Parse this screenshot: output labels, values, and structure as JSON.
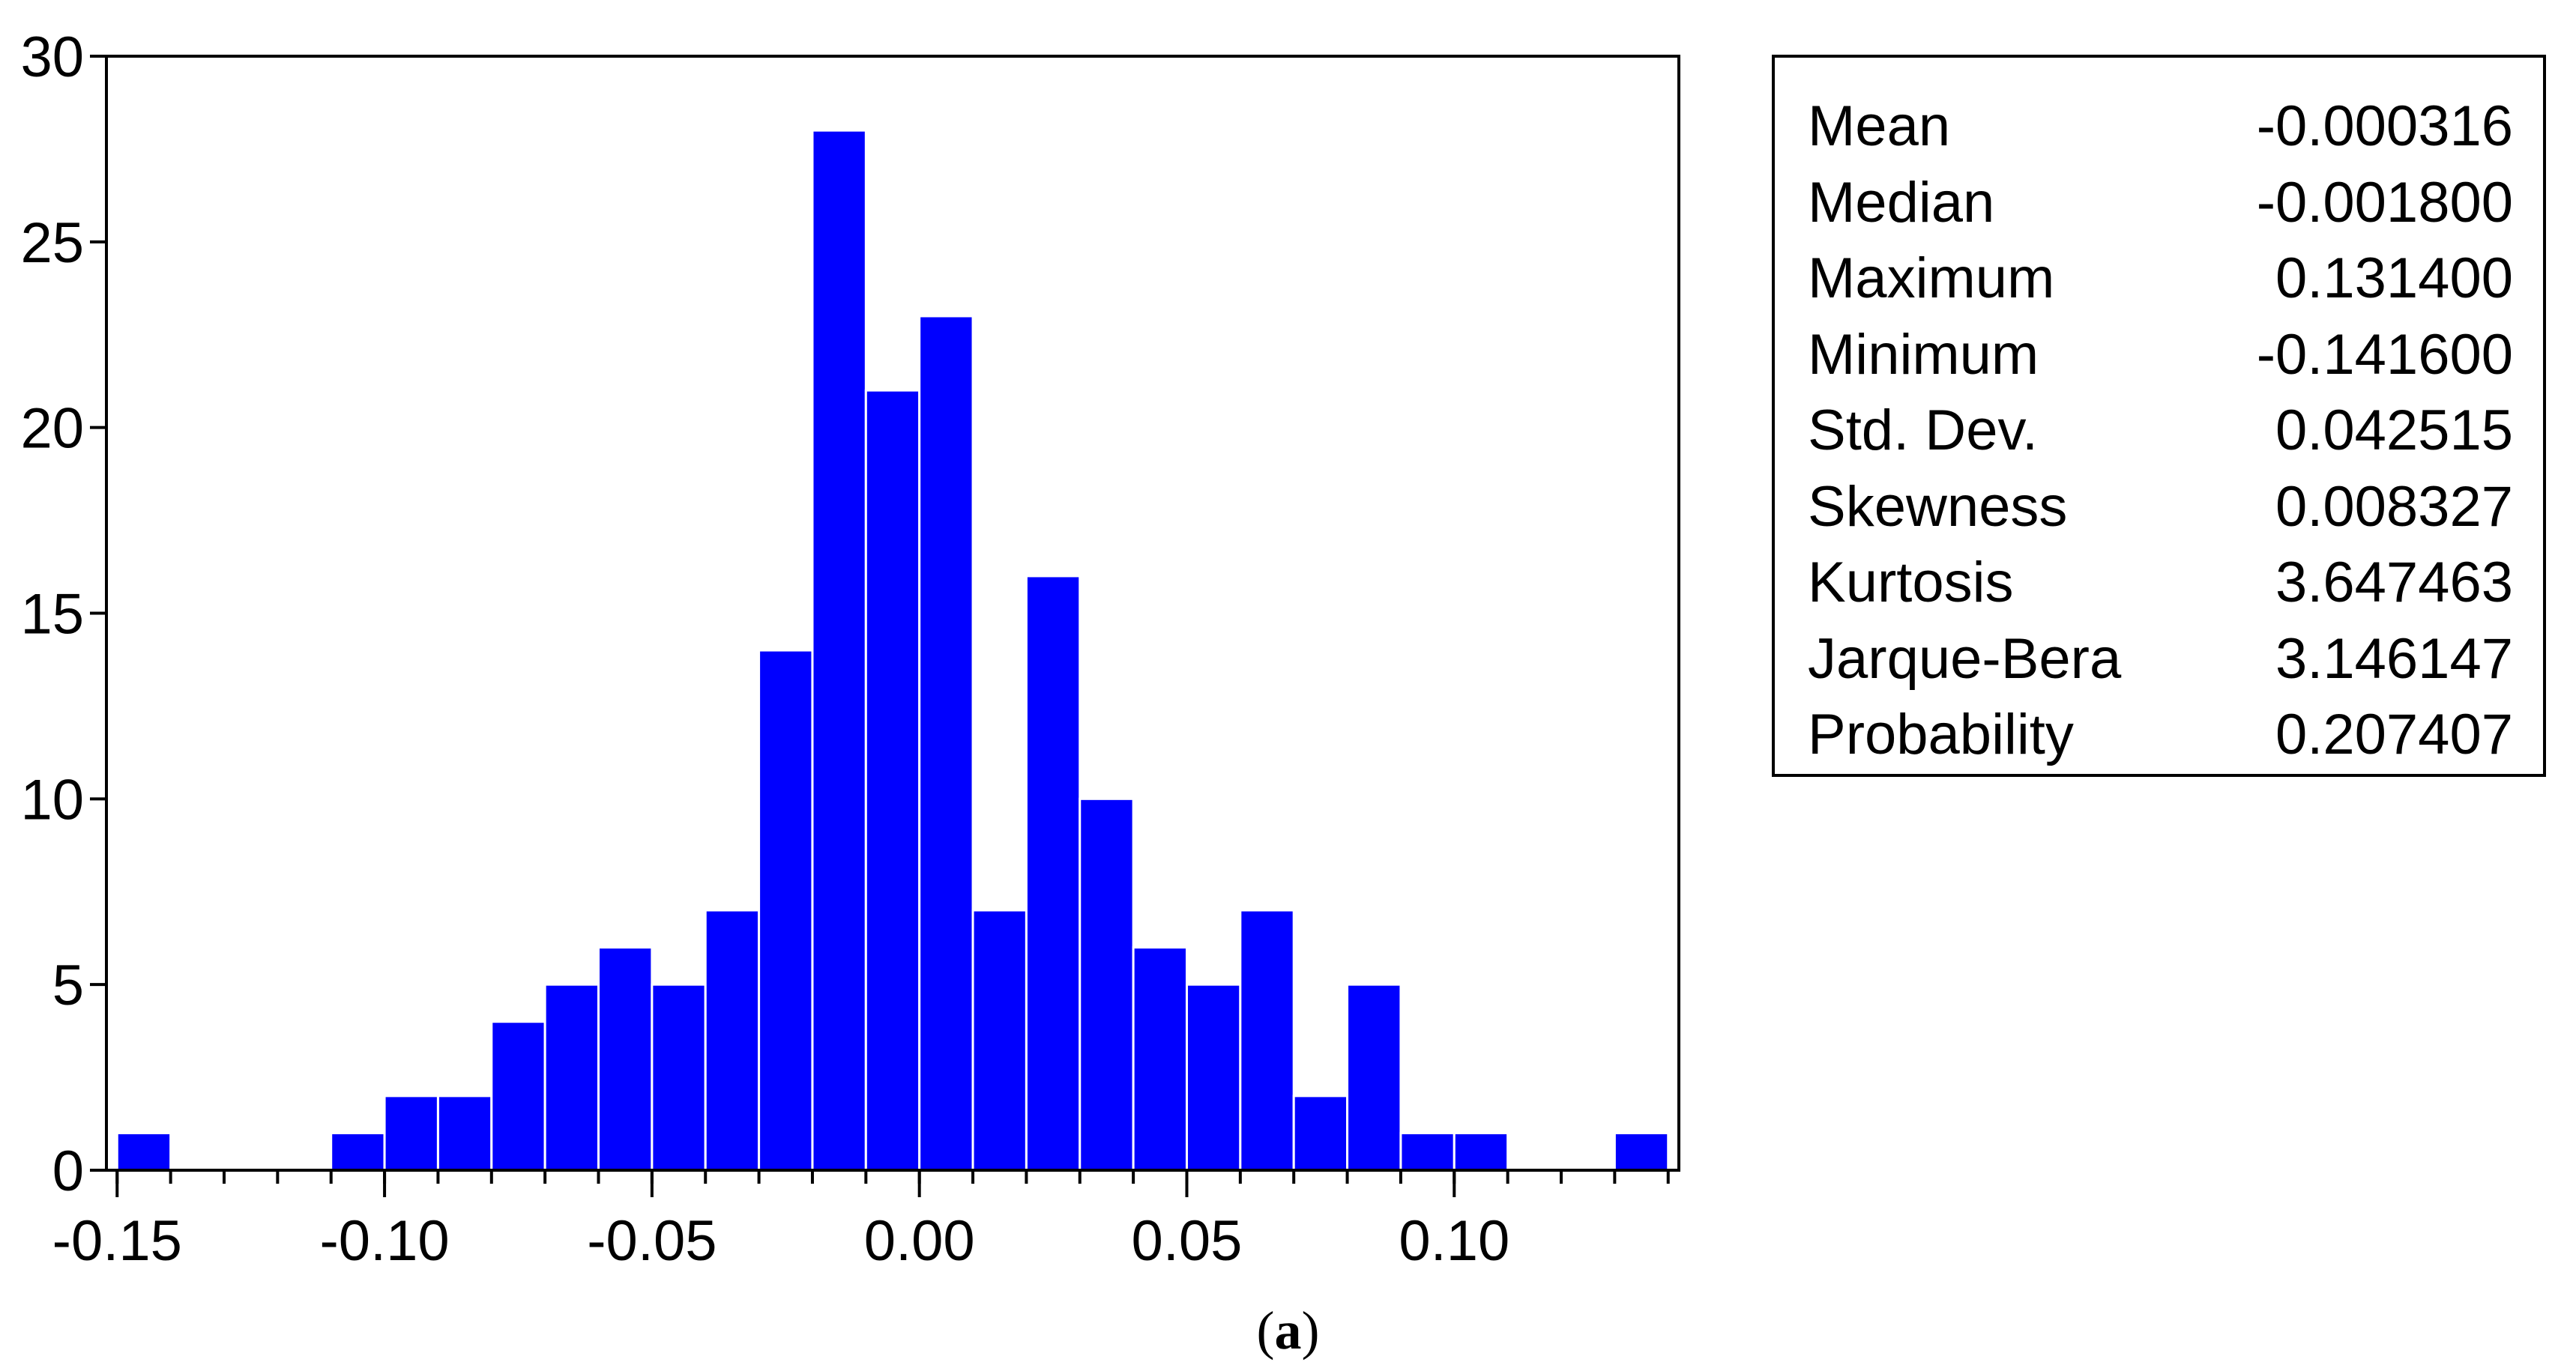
{
  "chart_data": {
    "type": "bar",
    "subtype": "histogram",
    "bar_color": "#0000FF",
    "bins": [
      {
        "center": -0.145,
        "count": 1
      },
      {
        "center": -0.135,
        "count": 0
      },
      {
        "center": -0.125,
        "count": 0
      },
      {
        "center": -0.115,
        "count": 0
      },
      {
        "center": -0.105,
        "count": 1
      },
      {
        "center": -0.095,
        "count": 2
      },
      {
        "center": -0.085,
        "count": 2
      },
      {
        "center": -0.075,
        "count": 4
      },
      {
        "center": -0.065,
        "count": 5
      },
      {
        "center": -0.055,
        "count": 6
      },
      {
        "center": -0.045,
        "count": 5
      },
      {
        "center": -0.035,
        "count": 7
      },
      {
        "center": -0.025,
        "count": 14
      },
      {
        "center": -0.015,
        "count": 28
      },
      {
        "center": -0.005,
        "count": 21
      },
      {
        "center": 0.005,
        "count": 23
      },
      {
        "center": 0.015,
        "count": 7
      },
      {
        "center": 0.025,
        "count": 16
      },
      {
        "center": 0.035,
        "count": 10
      },
      {
        "center": 0.045,
        "count": 6
      },
      {
        "center": 0.055,
        "count": 5
      },
      {
        "center": 0.065,
        "count": 7
      },
      {
        "center": 0.075,
        "count": 2
      },
      {
        "center": 0.085,
        "count": 5
      },
      {
        "center": 0.095,
        "count": 1
      },
      {
        "center": 0.105,
        "count": 1
      },
      {
        "center": 0.115,
        "count": 0
      },
      {
        "center": 0.125,
        "count": 0
      },
      {
        "center": 0.135,
        "count": 1
      }
    ],
    "bin_width": 0.01,
    "xlim": [
      -0.152,
      0.142
    ],
    "ylim": [
      0,
      30
    ],
    "x_ticks": [
      "-0.15",
      "-0.10",
      "-0.05",
      "0.00",
      "0.05",
      "0.10"
    ],
    "x_tick_values": [
      -0.15,
      -0.1,
      -0.05,
      0.0,
      0.05,
      0.1
    ],
    "y_ticks": [
      "0",
      "5",
      "10",
      "15",
      "20",
      "25",
      "30"
    ],
    "y_tick_values": [
      0,
      5,
      10,
      15,
      20,
      25,
      30
    ],
    "minor_x_step": 0.01,
    "grid": false,
    "legend": "none"
  },
  "stats": [
    {
      "label": "Mean",
      "value": "-0.000316"
    },
    {
      "label": "Median",
      "value": "-0.001800"
    },
    {
      "label": "Maximum",
      "value": "0.131400"
    },
    {
      "label": "Minimum",
      "value": "-0.141600"
    },
    {
      "label": "Std. Dev.",
      "value": "0.042515"
    },
    {
      "label": "Skewness",
      "value": "0.008327"
    },
    {
      "label": "Kurtosis",
      "value": "3.647463"
    },
    {
      "label": "Jarque-Bera",
      "value": "3.146147"
    },
    {
      "label": "Probability",
      "value": "0.207407"
    }
  ],
  "caption": {
    "open": "(",
    "letter": "a",
    "close": ")"
  }
}
